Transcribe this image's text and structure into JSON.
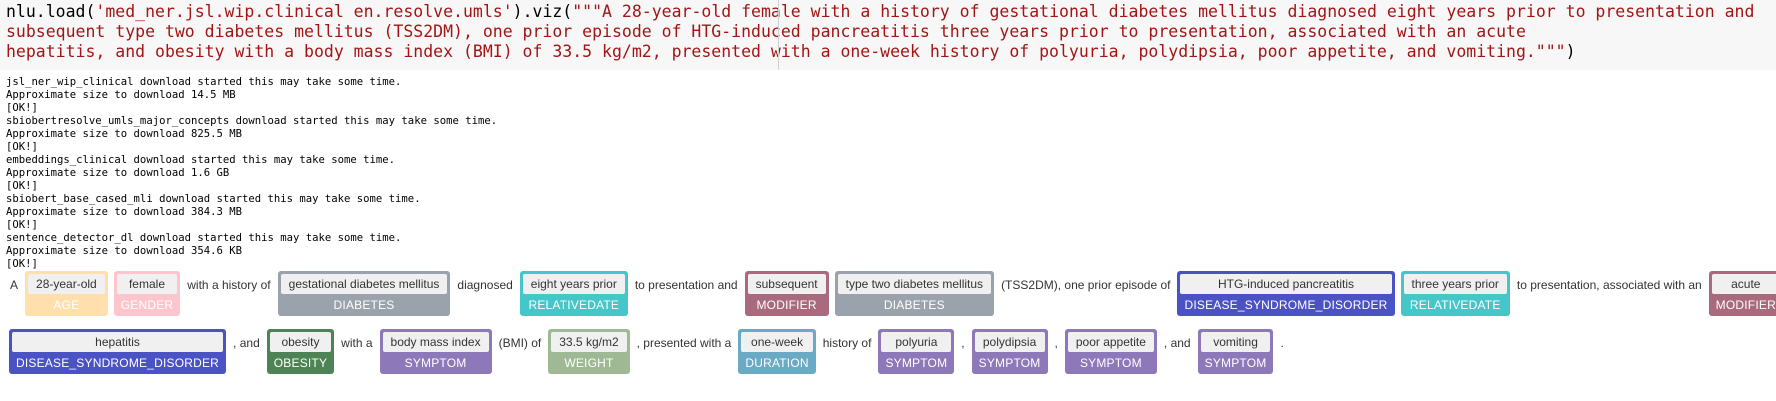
{
  "code": {
    "line1_prefix": "nlu.load(",
    "line1_model": "'med_ner.jsl.wip.clinical en.resolve.umls'",
    "line1_mid": ").viz(",
    "line1_str": "\"\"\"A 28-year-old female with a history of gestational diabetes mellitus diagnosed eight years prior to presentation and",
    "line2_str": "subsequent type two diabetes mellitus (TSS2DM), one prior episode of HTG-induced pancreatitis three years prior to presentation, associated with an acute",
    "line3_str": "hepatitis, and obesity with a body mass index (BMI) of 33.5 kg/m2, presented with a one-week history of polyuria, polydipsia, poor appetite, and vomiting.\"\"\"",
    "line3_close": ")"
  },
  "log_lines": [
    "jsl_ner_wip_clinical download started this may take some time.",
    "Approximate size to download 14.5 MB",
    "[OK!]",
    "sbiobertresolve_umls_major_concepts download started this may take some time.",
    "Approximate size to download 825.5 MB",
    "[OK!]",
    "embeddings_clinical download started this may take some time.",
    "Approximate size to download 1.6 GB",
    "[OK!]",
    "sbiobert_base_cased_mli download started this may take some time.",
    "Approximate size to download 384.3 MB",
    "[OK!]",
    "sentence_detector_dl download started this may take some time.",
    "Approximate size to download 354.6 KB",
    "[OK!]"
  ],
  "colors": {
    "AGE": "#ffe0ac",
    "GENDER": "#ffc5cc",
    "DIABETES": "#9aa3ab",
    "RELATIVEDATE": "#45c7c9",
    "MODIFIER": "#a86a7c",
    "DISEASE_SYNDROME_DISORDER": "#4b52c4",
    "OBESITY": "#4e8455",
    "SYMPTOM": "#8d78b9",
    "WEIGHT": "#9fb994",
    "DURATION": "#6aaac4"
  },
  "viz_lines": [
    [
      {
        "t": "A"
      },
      {
        "e": "28-year-old",
        "l": "AGE"
      },
      {
        "e": "female",
        "l": "GENDER"
      },
      {
        "t": "with a history of"
      },
      {
        "e": "gestational diabetes mellitus",
        "l": "DIABETES"
      },
      {
        "t": "diagnosed"
      },
      {
        "e": "eight years prior",
        "l": "RELATIVEDATE"
      },
      {
        "t": "to presentation and"
      },
      {
        "e": "subsequent",
        "l": "MODIFIER"
      },
      {
        "e": "type two diabetes mellitus",
        "l": "DIABETES"
      },
      {
        "t": "(TSS2DM), one prior episode of"
      },
      {
        "e": "HTG-induced pancreatitis",
        "l": "DISEASE_SYNDROME_DISORDER"
      },
      {
        "e": "three years prior",
        "l": "RELATIVEDATE"
      },
      {
        "t": "to presentation, associated with an"
      },
      {
        "e": "acute",
        "l": "MODIFIER"
      }
    ],
    [
      {
        "e": "hepatitis",
        "l": "DISEASE_SYNDROME_DISORDER"
      },
      {
        "t": ", and"
      },
      {
        "e": "obesity",
        "l": "OBESITY"
      },
      {
        "t": "with a"
      },
      {
        "e": "body mass index",
        "l": "SYMPTOM"
      },
      {
        "t": "(BMI) of"
      },
      {
        "e": "33.5 kg/m2",
        "l": "WEIGHT"
      },
      {
        "t": ", presented with a"
      },
      {
        "e": "one-week",
        "l": "DURATION"
      },
      {
        "t": "history of"
      },
      {
        "e": "polyuria",
        "l": "SYMPTOM"
      },
      {
        "t": ","
      },
      {
        "e": "polydipsia",
        "l": "SYMPTOM"
      },
      {
        "t": ","
      },
      {
        "e": "poor appetite",
        "l": "SYMPTOM"
      },
      {
        "t": ", and"
      },
      {
        "e": "vomiting",
        "l": "SYMPTOM"
      },
      {
        "t": "."
      }
    ]
  ]
}
